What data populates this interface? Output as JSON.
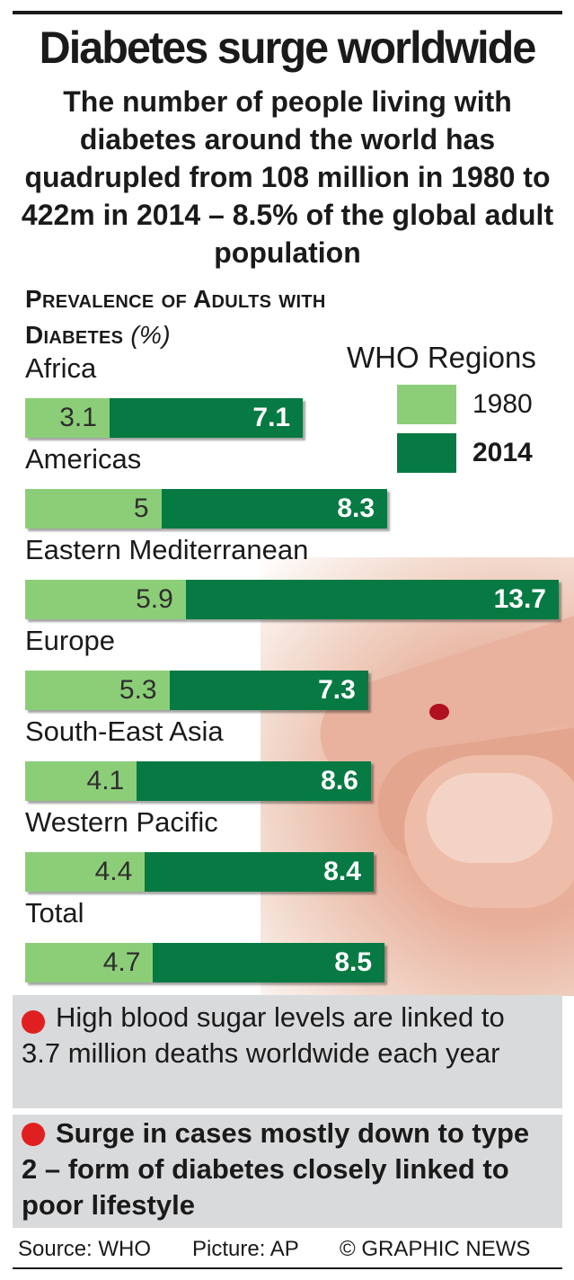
{
  "title": "Diabetes surge worldwide",
  "subtitle": "The number of people living with diabetes around the world has quadrupled from 108 million in 1980 to 422m in 2014 – 8.5% of the global adult population",
  "colors": {
    "y1980": "#8cce78",
    "y2014": "#077a43",
    "note_bg": "#d9dadc",
    "bullet": "#e02020"
  },
  "chart_data": {
    "type": "bar",
    "title": "Prevalence of Adults with Diabetes",
    "unit": "(%)",
    "legend_title": "WHO Regions",
    "legend_placement": "top-right",
    "stacked": true,
    "categories": [
      "Africa",
      "Americas",
      "Eastern Mediterranean",
      "Europe",
      "South-East Asia",
      "Western Pacific",
      "Total"
    ],
    "series": [
      {
        "name": "1980",
        "values": [
          3.1,
          5,
          5.9,
          5.3,
          4.1,
          4.4,
          4.7
        ]
      },
      {
        "name": "2014",
        "values": [
          7.1,
          8.3,
          13.7,
          7.3,
          8.6,
          8.4,
          8.5
        ]
      }
    ]
  },
  "notes": [
    "High blood sugar levels are linked to 3.7 million deaths worldwide each year",
    "Surge in cases mostly down to type 2 – form of diabetes closely linked to poor lifestyle"
  ],
  "footer": {
    "source": "Source: WHO",
    "picture": "Picture: AP",
    "credit": "© GRAPHIC NEWS"
  }
}
